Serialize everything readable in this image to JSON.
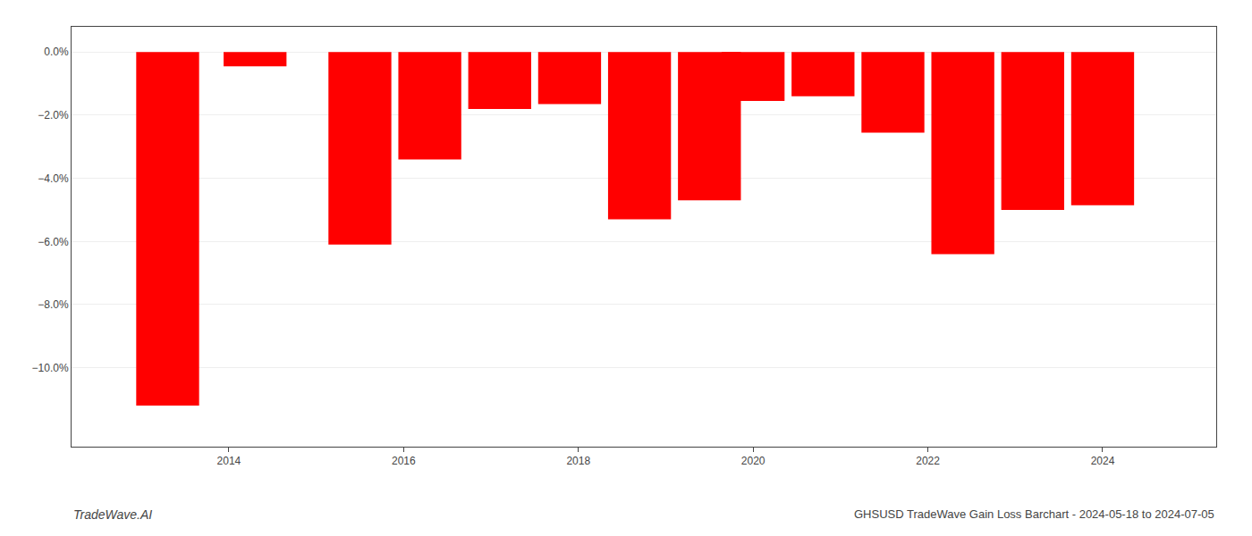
{
  "chart_data": {
    "type": "bar",
    "x": [
      2013.3,
      2014.3,
      2015.5,
      2016.3,
      2017.1,
      2017.9,
      2018.7,
      2019.5,
      2020.0,
      2020.8,
      2021.6,
      2022.4,
      2023.2,
      2024.0
    ],
    "values": [
      -11.2,
      -0.45,
      -6.1,
      -3.4,
      -1.8,
      -1.65,
      -5.3,
      -4.7,
      -1.55,
      -1.4,
      -2.55,
      -6.4,
      -5.0,
      -4.85
    ],
    "color": "#ff0000",
    "xlim": [
      2012.2,
      2025.3
    ],
    "xticks": [
      2014,
      2016,
      2018,
      2020,
      2022,
      2024
    ],
    "ylim": [
      -12.5,
      0.8
    ],
    "yticks": [
      {
        "value": 0.0,
        "label": "0.0%"
      },
      {
        "value": -2.0,
        "label": "−2.0%"
      },
      {
        "value": -4.0,
        "label": "−4.0%"
      },
      {
        "value": -6.0,
        "label": "−6.0%"
      },
      {
        "value": -8.0,
        "label": "−8.0%"
      },
      {
        "value": -10.0,
        "label": "−10.0%"
      }
    ],
    "grid": true,
    "annotations": [
      "TradeWave.AI",
      "GHSUSD TradeWave Gain Loss Barchart - 2024-05-18 to 2024-07-05"
    ]
  }
}
